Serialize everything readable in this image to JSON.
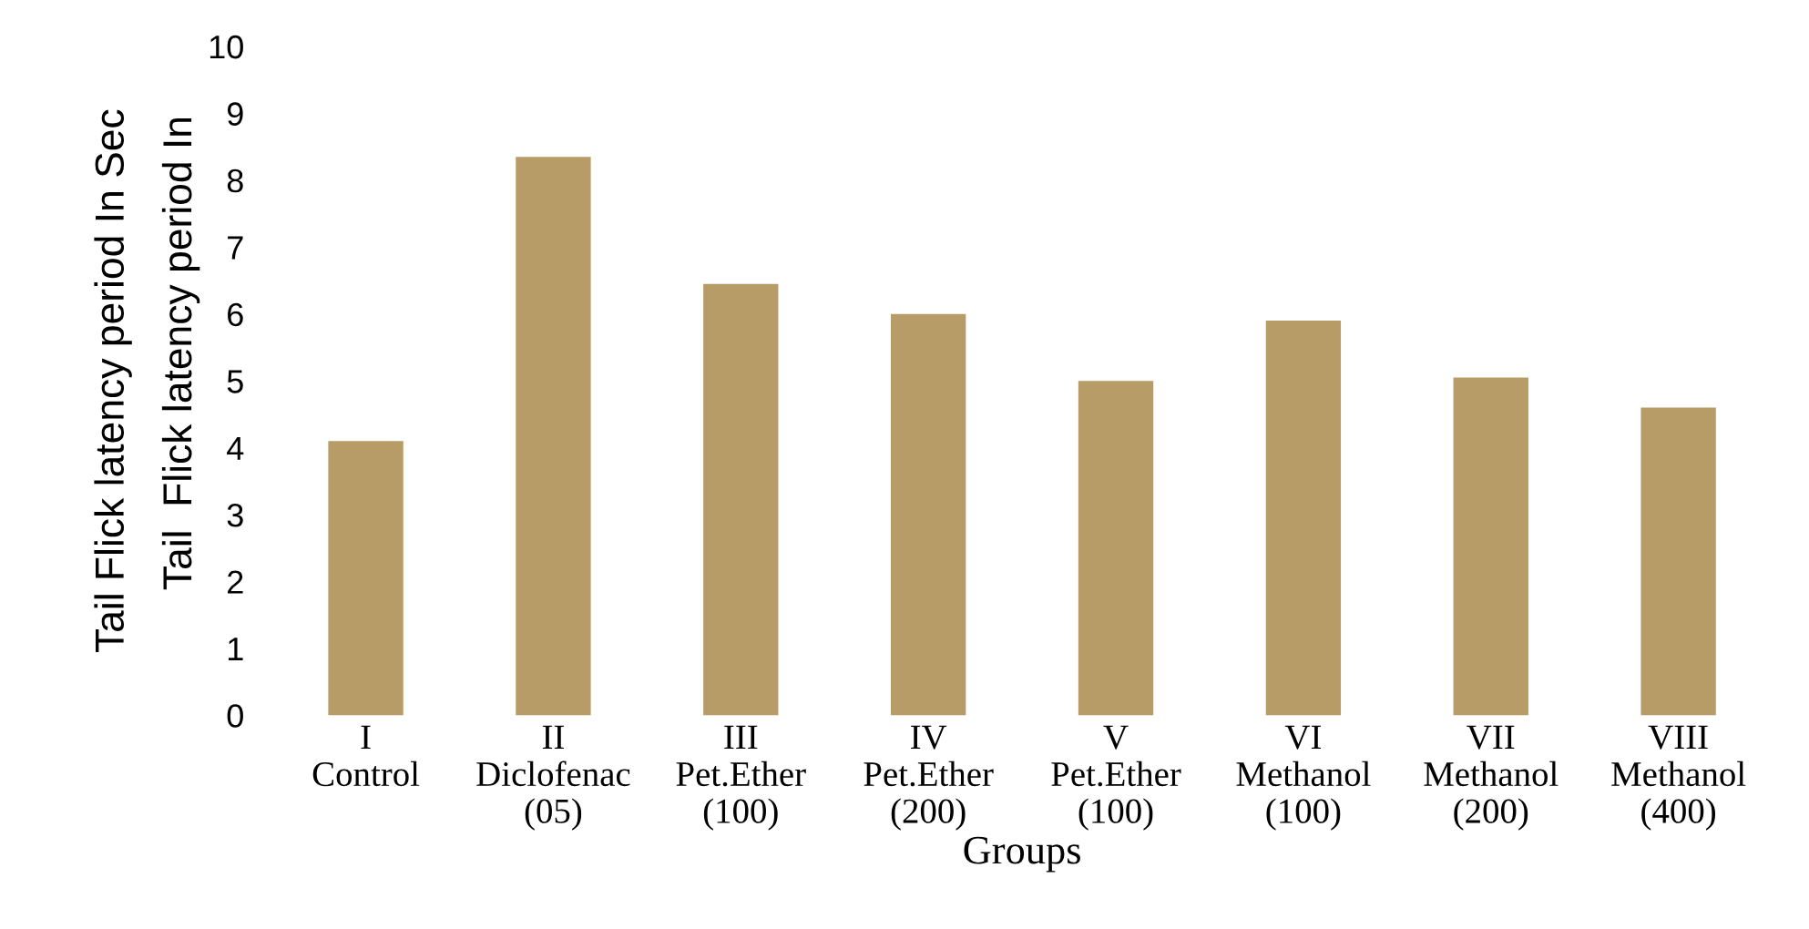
{
  "chart_data": {
    "type": "bar",
    "categories": [
      "I\nControl",
      "II\nDiclofenac\n(05)",
      "III\nPet.Ether\n(100)",
      "IV\nPet.Ether\n(200)",
      "V\nPet.Ether\n(100)",
      "VI\nMethanol\n(100)",
      "VII\nMethanol\n(200)",
      "VIII\nMethanol\n(400)"
    ],
    "values": [
      4.1,
      8.35,
      6.45,
      6.0,
      5.0,
      5.9,
      5.05,
      4.6
    ],
    "color": "#b89c68",
    "xlabel": "Groups",
    "ylabel": "Tail Flick latency period In Sec",
    "annotations": [
      "Tail  Flick latency period In"
    ],
    "ylim": [
      0,
      10
    ],
    "yticks": [
      0,
      1,
      2,
      3,
      4,
      5,
      6,
      7,
      8,
      9,
      10
    ],
    "grid": false
  }
}
